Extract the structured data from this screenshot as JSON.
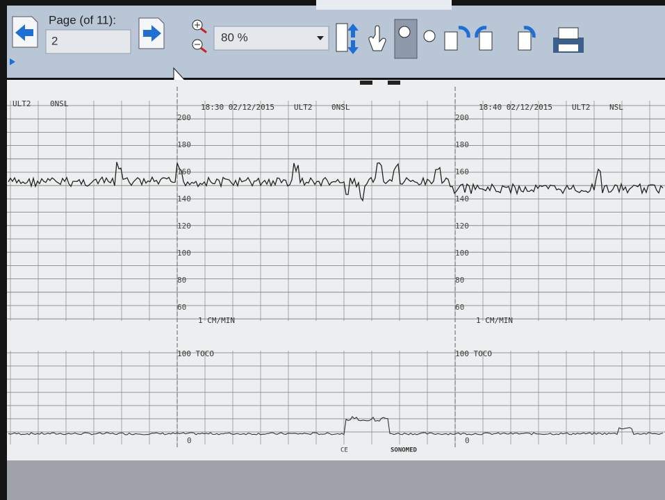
{
  "toolbar": {
    "page_label": "Page (of 11):",
    "page_value": "2",
    "zoom": "80 %"
  },
  "strip": {
    "left_header": {
      "channel": "ULT2",
      "mode": "0NSL"
    },
    "panels": [
      {
        "timestamp": "18:30 02/12/2015",
        "channel": "ULT2",
        "mode": "0NSL"
      },
      {
        "timestamp": "18:40 02/12/2015",
        "channel": "ULT2",
        "mode": "NSL"
      }
    ],
    "fhr_scale": [
      "200",
      "180",
      "160",
      "140",
      "120",
      "100",
      "80",
      "60"
    ],
    "speed": "1 CM/MIN",
    "toco_label": "100 TOCO",
    "toco_zero": "0",
    "footer": [
      "CE",
      "SONOMED"
    ]
  }
}
